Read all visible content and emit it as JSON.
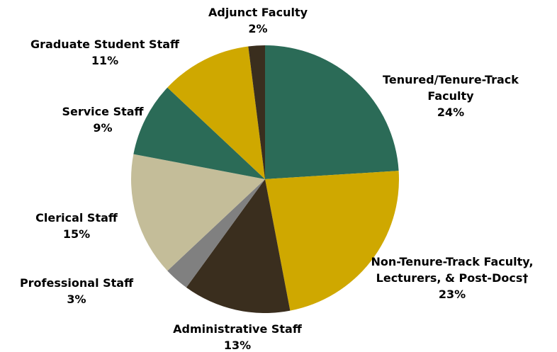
{
  "chart_data": {
    "type": "pie",
    "categories": [
      "Tenured/Tenure-Track Faculty",
      "Non-Tenure-Track Faculty, Lecturers, & Post-Docs†",
      "Administrative Staff",
      "Professional Staff",
      "Clerical Staff",
      "Service Staff",
      "Graduate Student Staff",
      "Adjunct Faculty"
    ],
    "values": [
      24,
      23,
      13,
      3,
      15,
      9,
      11,
      2
    ],
    "value_labels": [
      "24%",
      "23%",
      "13%",
      "3%",
      "15%",
      "9%",
      "11%",
      "2%"
    ],
    "colors": [
      "#2b6b57",
      "#cfa800",
      "#3a2e1e",
      "#808080",
      "#c4bd99",
      "#2b6b57",
      "#cfa800",
      "#3a2e1e"
    ]
  }
}
